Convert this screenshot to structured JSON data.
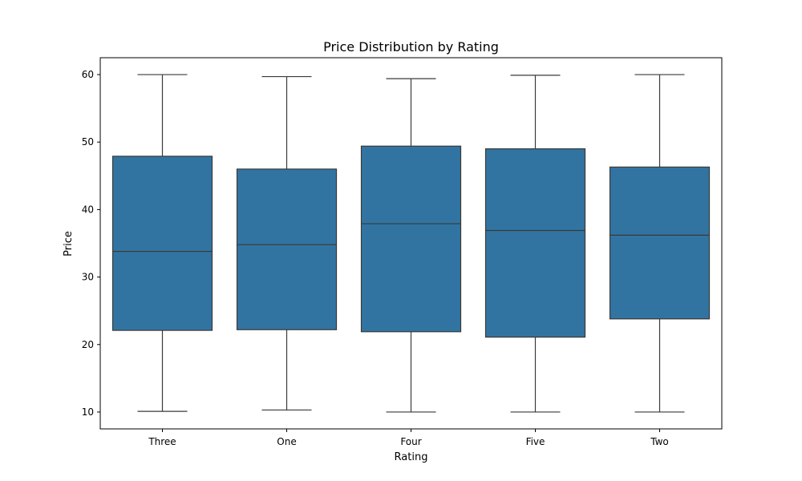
{
  "chart_data": {
    "type": "box",
    "title": "Price Distribution by Rating",
    "xlabel": "Rating",
    "ylabel": "Price",
    "categories": [
      "Three",
      "One",
      "Four",
      "Five",
      "Two"
    ],
    "boxes": [
      {
        "category": "Three",
        "min": 10.1,
        "q1": 22.1,
        "median": 33.8,
        "q3": 47.9,
        "max": 60.0
      },
      {
        "category": "One",
        "min": 10.3,
        "q1": 22.2,
        "median": 34.8,
        "q3": 46.0,
        "max": 59.7
      },
      {
        "category": "Four",
        "min": 10.0,
        "q1": 21.9,
        "median": 37.9,
        "q3": 49.4,
        "max": 59.4
      },
      {
        "category": "Five",
        "min": 10.0,
        "q1": 21.1,
        "median": 36.9,
        "q3": 49.0,
        "max": 59.9
      },
      {
        "category": "Two",
        "min": 10.0,
        "q1": 23.8,
        "median": 36.2,
        "q3": 46.3,
        "max": 60.0
      }
    ],
    "yticks": [
      10,
      20,
      30,
      40,
      50,
      60
    ],
    "ylim": [
      7.5,
      62.5
    ],
    "box_color": "#3274a1",
    "line_color": "#3a3a3a",
    "grid": false
  }
}
